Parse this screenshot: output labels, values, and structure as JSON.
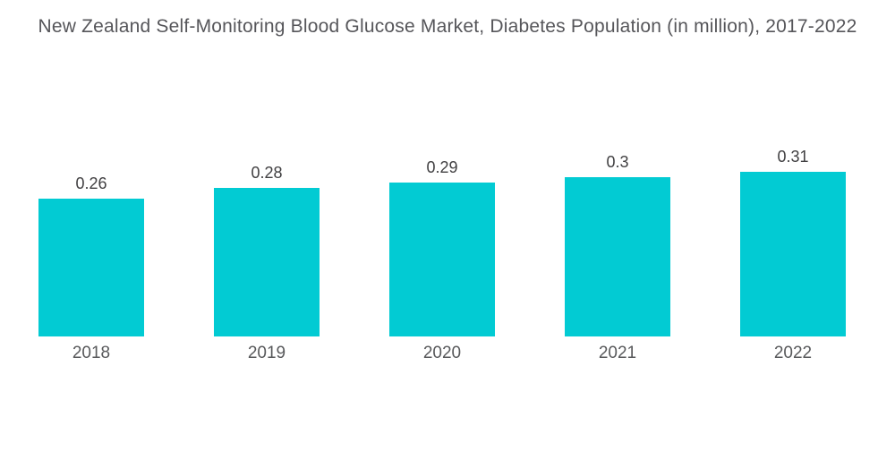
{
  "title": "New Zealand Self-Monitoring Blood Glucose Market, Diabetes Population (in million), 2017-2022",
  "chart_data": {
    "type": "bar",
    "title": "New Zealand Self-Monitoring Blood Glucose Market, Diabetes Population (in million), 2017-2022",
    "categories": [
      "2018",
      "2019",
      "2020",
      "2021",
      "2022"
    ],
    "values": [
      0.26,
      0.28,
      0.29,
      0.3,
      0.31
    ],
    "value_labels": [
      "0.26",
      "0.28",
      "0.29",
      "0.3",
      "0.31"
    ],
    "xlabel": "",
    "ylabel": "",
    "ylim": [
      0,
      0.35
    ],
    "grid": false,
    "legend": false,
    "axes_visible": false,
    "bar_color": "#02CBD3"
  },
  "colors": {
    "background": "#FFFFFF",
    "bar": "#02CBD3",
    "title_text": "#56565A",
    "value_text": "#414042",
    "category_text": "#58595B"
  }
}
